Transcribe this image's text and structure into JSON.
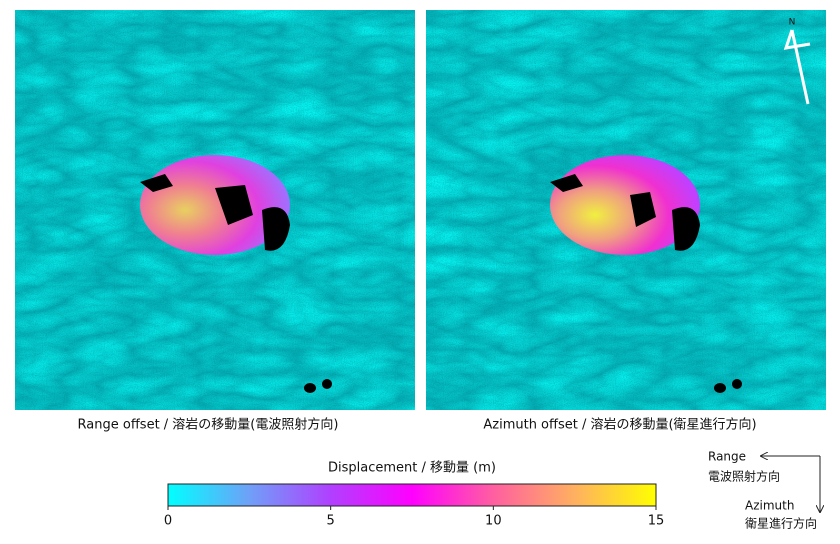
{
  "panels": [
    {
      "caption": "Range offset / 溶岩の移動量(電波照射方向)"
    },
    {
      "caption": "Azimuth offset / 溶岩の移動量(衛星進行方向)"
    }
  ],
  "north_label": "N",
  "colorbar": {
    "title": "Displacement / 移動量 (m)",
    "lim": [
      0,
      15
    ],
    "ticks": [
      0,
      5,
      10,
      15
    ],
    "colors": [
      "#00ffff",
      "#6fa0f8",
      "#b040ff",
      "#ff00ff",
      "#ff5fa0",
      "#ffb060",
      "#ffff00"
    ]
  },
  "directions": {
    "range": {
      "en": "Range",
      "ja": "電波照射方向"
    },
    "azimuth": {
      "en": "Azimuth",
      "ja": "衛星進行方向"
    }
  }
}
